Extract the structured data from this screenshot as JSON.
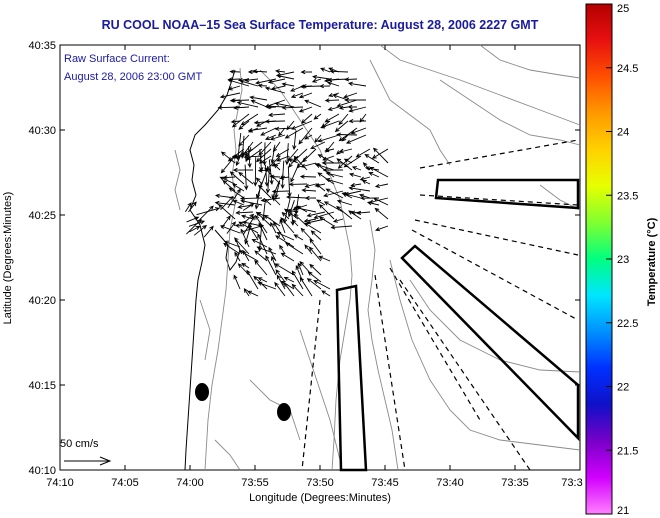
{
  "title": "RU COOL  NOAA–15  Sea Surface Temperature:  August 28, 2006 2227 GMT",
  "annotation": {
    "line1": "Raw Surface Current:",
    "line2": "August 28, 2006 23:00 GMT"
  },
  "scale_label": "50 cm/s",
  "map": {
    "xlabel": "Longitude (Degrees:Minutes)",
    "ylabel": "Latitude (Degrees:Minutes)",
    "x_ticks": [
      "74:10",
      "74:05",
      "74:00",
      "73:55",
      "73:50",
      "73:45",
      "73:40",
      "73:35",
      "73:3"
    ],
    "y_ticks": [
      "40:35",
      "40:30",
      "40:25",
      "40:20",
      "40:15",
      "40:10"
    ]
  },
  "colorbar": {
    "label": "Temperature (°C)",
    "ticks": [
      "25",
      "24.5",
      "24",
      "23.5",
      "23",
      "22.5",
      "22",
      "21.5",
      "21"
    ],
    "colors": [
      "#b40000",
      "#e81010",
      "#ff5000",
      "#ff9900",
      "#ffd200",
      "#e6ff00",
      "#80ff30",
      "#00ff80",
      "#00e6ff",
      "#0090ff",
      "#0030ff",
      "#1010c8",
      "#7800c8",
      "#d200ff",
      "#ff80ff"
    ]
  }
}
